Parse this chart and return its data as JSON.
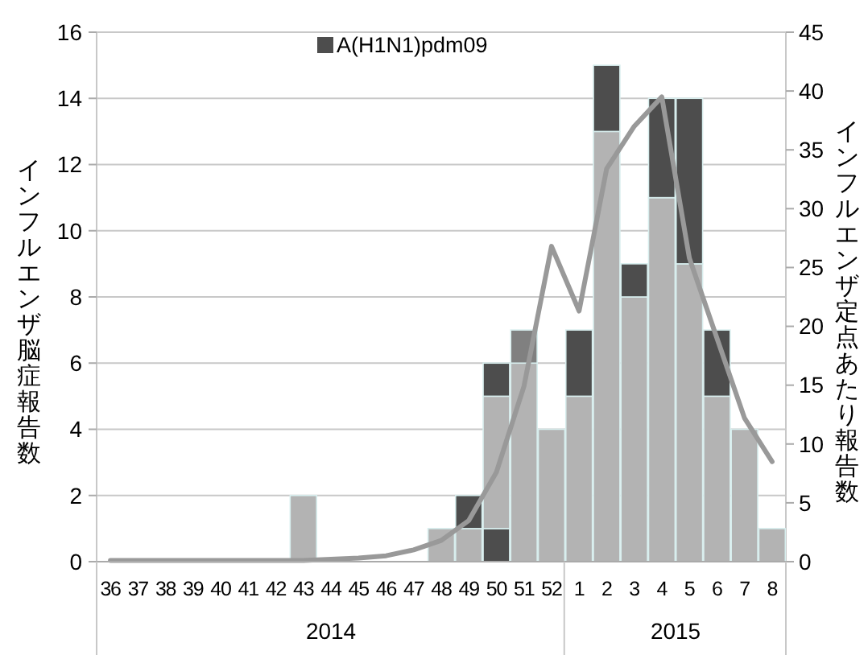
{
  "chart_data": {
    "type": "bar",
    "stacked": true,
    "xlabel": null,
    "ylabel": "インフルエンザ脳症報告数",
    "y2label": "インフルエンザ定点あたり報告数",
    "categories": [
      "36",
      "37",
      "38",
      "39",
      "40",
      "41",
      "42",
      "43",
      "44",
      "45",
      "46",
      "47",
      "48",
      "49",
      "50",
      "51",
      "52",
      "1",
      "2",
      "3",
      "4",
      "5",
      "6",
      "7",
      "8"
    ],
    "series": [
      {
        "color": "#4d4d4d",
        "values": [
          0,
          0,
          0,
          0,
          0,
          0,
          0,
          0,
          0,
          0,
          0,
          0,
          0,
          0,
          1,
          0,
          0,
          0,
          0,
          0,
          0,
          0,
          0,
          0,
          0
        ]
      },
      {
        "color": "#b3b3b3",
        "values": [
          0,
          0,
          0,
          0,
          0,
          0,
          0,
          2,
          0,
          0,
          0,
          0,
          1,
          1,
          4,
          6,
          4,
          5,
          13,
          8,
          11,
          9,
          5,
          4,
          1
        ]
      },
      {
        "color": "#808080",
        "values": [
          0,
          0,
          0,
          0,
          0,
          0,
          0,
          0,
          0,
          0,
          0,
          0,
          0,
          0,
          0,
          1,
          0,
          0,
          0,
          0,
          0,
          0,
          0,
          0,
          0
        ]
      },
      {
        "name": "A(H1N1)pdm09",
        "color": "#4d4d4d",
        "values": [
          0,
          0,
          0,
          0,
          0,
          0,
          0,
          0,
          0,
          0,
          0,
          0,
          0,
          1,
          1,
          0,
          0,
          2,
          2,
          1,
          3,
          5,
          2,
          0,
          0
        ]
      },
      {
        "type": "line",
        "axis": "y2",
        "color": "#999999",
        "values": [
          0.1,
          0.1,
          0.1,
          0.1,
          0.1,
          0.1,
          0.1,
          0.1,
          0.2,
          0.3,
          0.5,
          1,
          1.8,
          3.5,
          7.6,
          14.9,
          26.8,
          21.3,
          33.4,
          37,
          39.5,
          25.8,
          19,
          12.2,
          8.5
        ]
      }
    ],
    "ylim": [
      0,
      16
    ],
    "yticks": [
      0,
      2,
      4,
      6,
      8,
      10,
      12,
      14,
      16
    ],
    "y2lim": [
      0,
      45
    ],
    "y2ticks": [
      0,
      5,
      10,
      15,
      20,
      25,
      30,
      35,
      40,
      45
    ],
    "grid": "y",
    "legend": "top",
    "marker": "none",
    "line_style": "solid",
    "annotations": [
      "2014",
      "2015"
    ]
  }
}
